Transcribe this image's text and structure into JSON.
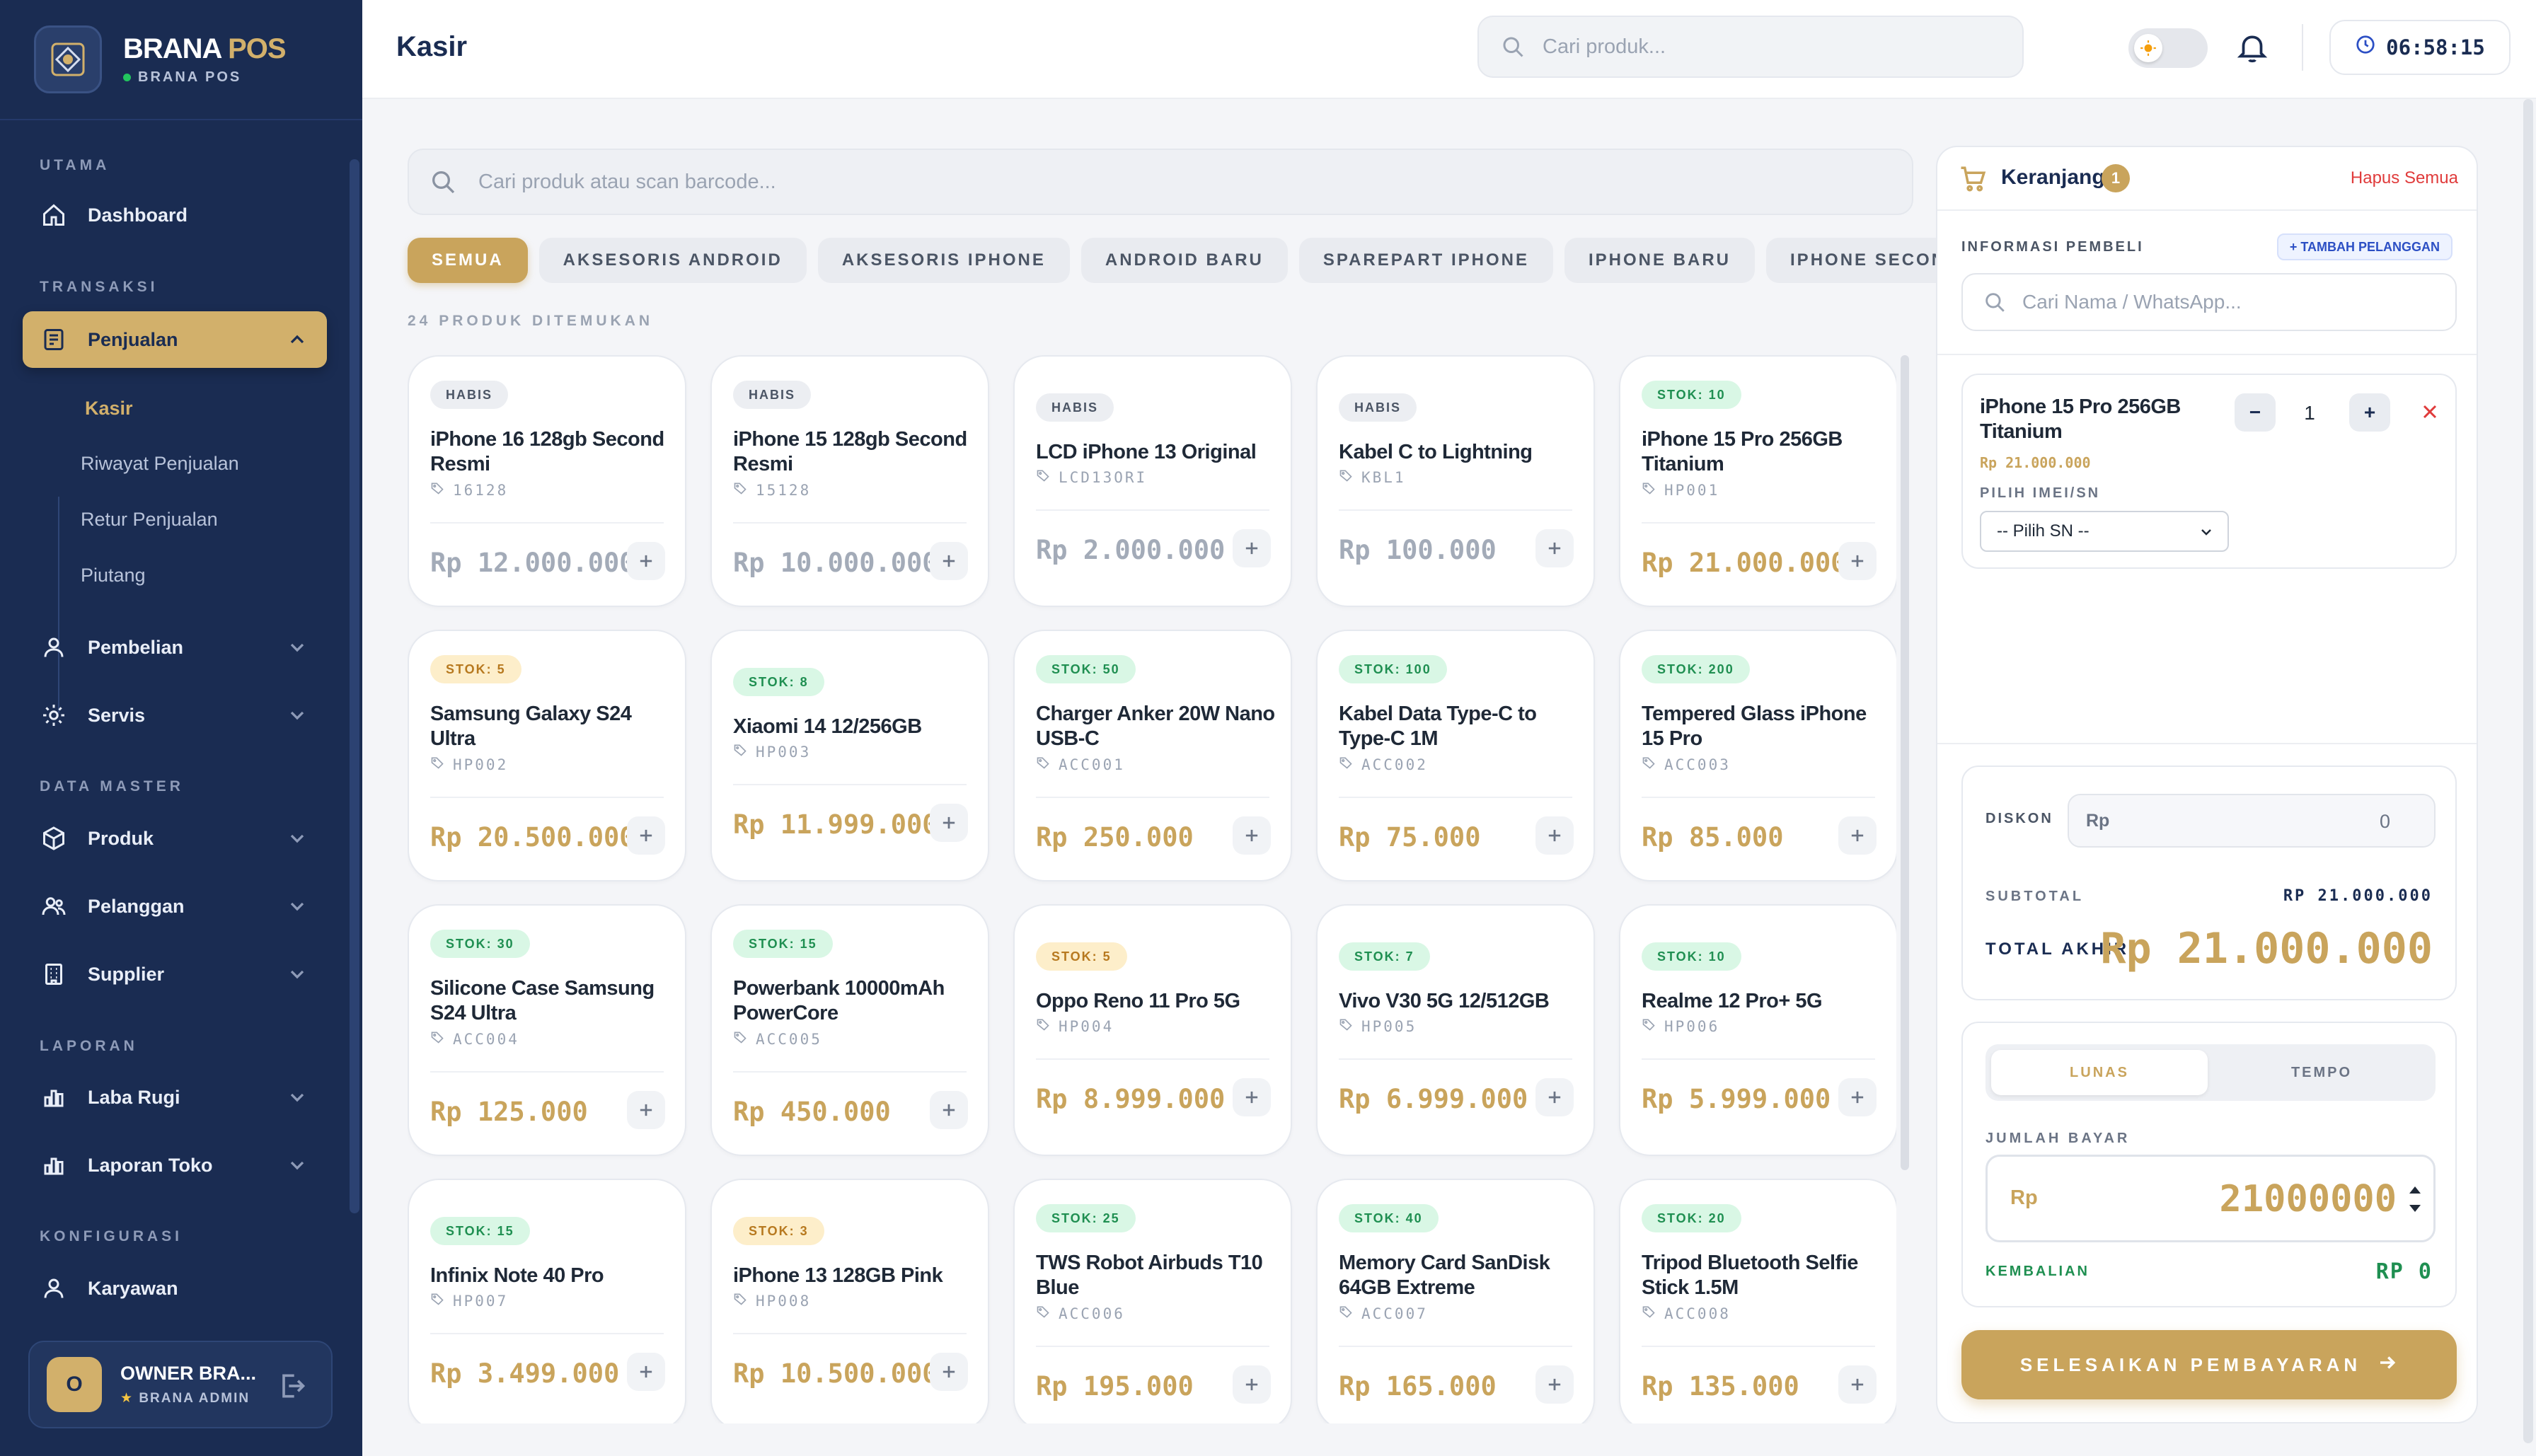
{
  "brand": {
    "name_main": "BRANA",
    "name_accent": " POS",
    "sub": "BRANA POS"
  },
  "sidebar": {
    "sections": {
      "utama": "UTAMA",
      "transaksi": "TRANSAKSI",
      "data_master": "DATA MASTER",
      "laporan": "LAPORAN",
      "konfigurasi": "KONFIGURASI"
    },
    "items": {
      "dashboard": "Dashboard",
      "penjualan": "Penjualan",
      "pembelian": "Pembelian",
      "servis": "Servis",
      "produk": "Produk",
      "pelanggan": "Pelanggan",
      "supplier": "Supplier",
      "laba_rugi": "Laba Rugi",
      "laporan_toko": "Laporan Toko",
      "karyawan": "Karyawan"
    },
    "penjualan_sub": [
      "Kasir",
      "Riwayat Penjualan",
      "Retur Penjualan",
      "Piutang"
    ],
    "user": {
      "initial": "O",
      "name": "OWNER BRA...",
      "role": "BRANA ADMIN"
    }
  },
  "header": {
    "title": "Kasir",
    "search_placeholder": "Cari produk...",
    "clock": "06:58:15"
  },
  "products": {
    "search_placeholder": "Cari produk atau scan barcode...",
    "categories": [
      "SEMUA",
      "AKSESORIS ANDROID",
      "AKSESORIS IPHONE",
      "ANDROID BARU",
      "SPAREPART IPHONE",
      "IPHONE BARU",
      "IPHONE SECOND"
    ],
    "count_label": "24 PRODUK DITEMUKAN",
    "items": [
      {
        "badge": "HABIS",
        "status": "habis",
        "name": "iPhone 16 128gb Second Resmi",
        "sku": "16128",
        "price": "Rp 12.000.000"
      },
      {
        "badge": "HABIS",
        "status": "habis",
        "name": "iPhone 15 128gb Second Resmi",
        "sku": "15128",
        "price": "Rp 10.000.000"
      },
      {
        "badge": "HABIS",
        "status": "habis",
        "name": "LCD iPhone 13 Original",
        "sku": "LCD13ORI",
        "price": "Rp 2.000.000"
      },
      {
        "badge": "HABIS",
        "status": "habis",
        "name": "Kabel C to Lightning",
        "sku": "KBL1",
        "price": "Rp 100.000"
      },
      {
        "badge": "STOK: 10",
        "status": "green",
        "name": "iPhone 15 Pro 256GB Titanium",
        "sku": "HP001",
        "price": "Rp 21.000.000"
      },
      {
        "badge": "STOK: 5",
        "status": "yellow",
        "name": "Samsung Galaxy S24 Ultra",
        "sku": "HP002",
        "price": "Rp 20.500.000"
      },
      {
        "badge": "STOK: 8",
        "status": "green",
        "name": "Xiaomi 14 12/256GB",
        "sku": "HP003",
        "price": "Rp 11.999.000"
      },
      {
        "badge": "STOK: 50",
        "status": "green",
        "name": "Charger Anker 20W Nano USB-C",
        "sku": "ACC001",
        "price": "Rp 250.000"
      },
      {
        "badge": "STOK: 100",
        "status": "green",
        "name": "Kabel Data Type-C to Type-C 1M",
        "sku": "ACC002",
        "price": "Rp 75.000"
      },
      {
        "badge": "STOK: 200",
        "status": "green",
        "name": "Tempered Glass iPhone 15 Pro",
        "sku": "ACC003",
        "price": "Rp 85.000"
      },
      {
        "badge": "STOK: 30",
        "status": "green",
        "name": "Silicone Case Samsung S24 Ultra",
        "sku": "ACC004",
        "price": "Rp 125.000"
      },
      {
        "badge": "STOK: 15",
        "status": "green",
        "name": "Powerbank 10000mAh PowerCore",
        "sku": "ACC005",
        "price": "Rp 450.000"
      },
      {
        "badge": "STOK: 5",
        "status": "yellow",
        "name": "Oppo Reno 11 Pro 5G",
        "sku": "HP004",
        "price": "Rp 8.999.000"
      },
      {
        "badge": "STOK: 7",
        "status": "green",
        "name": "Vivo V30 5G 12/512GB",
        "sku": "HP005",
        "price": "Rp 6.999.000"
      },
      {
        "badge": "STOK: 10",
        "status": "green",
        "name": "Realme 12 Pro+ 5G",
        "sku": "HP006",
        "price": "Rp 5.999.000"
      },
      {
        "badge": "STOK: 15",
        "status": "green",
        "name": "Infinix Note 40 Pro",
        "sku": "HP007",
        "price": "Rp 3.499.000"
      },
      {
        "badge": "STOK: 3",
        "status": "yellow",
        "name": "iPhone 13 128GB Pink",
        "sku": "HP008",
        "price": "Rp 10.500.000"
      },
      {
        "badge": "STOK: 25",
        "status": "green",
        "name": "TWS Robot Airbuds T10 Blue",
        "sku": "ACC006",
        "price": "Rp 195.000"
      },
      {
        "badge": "STOK: 40",
        "status": "green",
        "name": "Memory Card SanDisk 64GB Extreme",
        "sku": "ACC007",
        "price": "Rp 165.000"
      },
      {
        "badge": "STOK: 20",
        "status": "green",
        "name": "Tripod Bluetooth Selfie Stick 1.5M",
        "sku": "ACC008",
        "price": "Rp 135.000"
      }
    ]
  },
  "cart": {
    "title": "Keranjang",
    "count": "1",
    "clear_label": "Hapus Semua",
    "buyer_label": "INFORMASI PEMBELI",
    "add_customer_label": "+ TAMBAH PELANGGAN",
    "buyer_placeholder": "Cari Nama / WhatsApp...",
    "item": {
      "name": "iPhone 15 Pro 256GB Titanium",
      "price": "Rp 21.000.000",
      "qty": "1",
      "minus": "−",
      "plus": "+",
      "imei_label": "PILIH IMEI/SN",
      "imei_selected": "-- Pilih SN --"
    },
    "discount_label": "DISKON",
    "discount_prefix": "Rp",
    "discount_value": "0",
    "subtotal_label": "SUBTOTAL",
    "subtotal_value": "RP 21.000.000",
    "total_label": "TOTAL AKHIR",
    "total_value": "Rp 21.000.000",
    "payment_tabs": [
      "LUNAS",
      "TEMPO"
    ],
    "amount_label": "JUMLAH BAYAR",
    "amount_prefix": "Rp",
    "amount_value": "21000000",
    "change_label": "KEMBALIAN",
    "change_value": "RP 0",
    "pay_button": "SELESAIKAN PEMBAYARAN"
  },
  "colors": {
    "sidebar_bg": "#1a2c52",
    "accent_gold": "#c9a45c",
    "stock_green": "#1f8f51",
    "stock_yellow": "#b7791f",
    "danger": "#e03b3b"
  }
}
